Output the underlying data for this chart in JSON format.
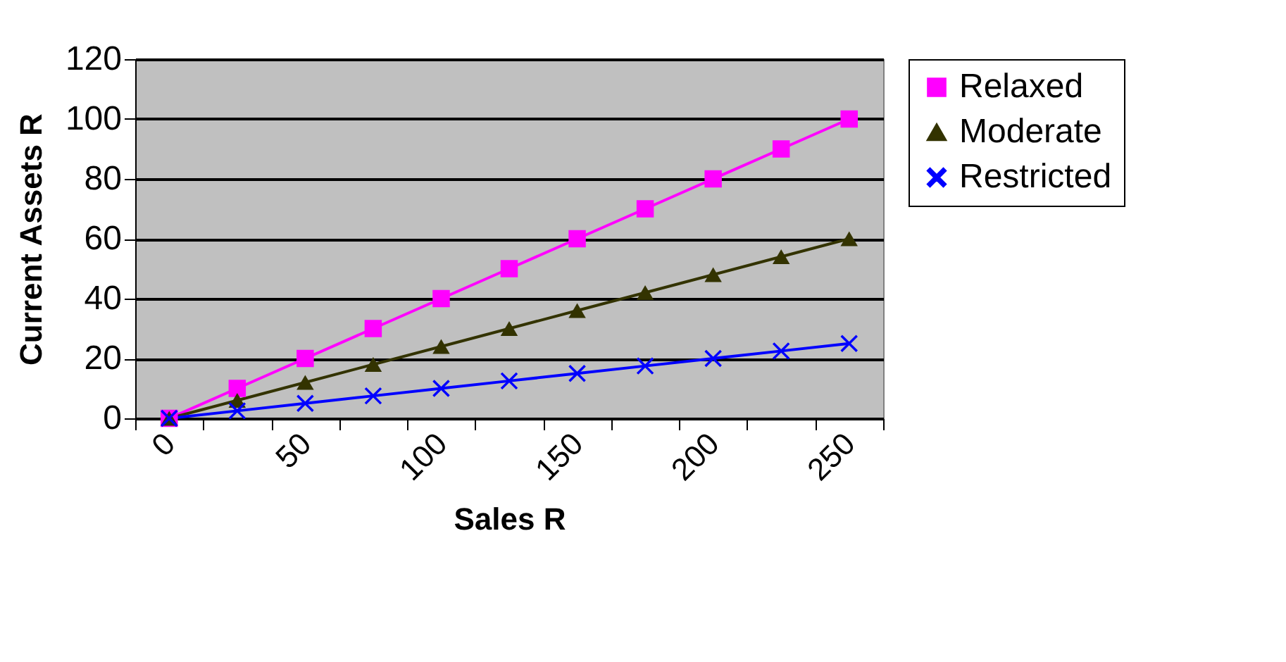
{
  "chart_data": {
    "type": "line",
    "xlabel": "Sales R",
    "ylabel": "Current Assets R",
    "categories": [
      "0",
      null,
      "50",
      null,
      "100",
      null,
      "150",
      null,
      "200",
      null,
      "250"
    ],
    "series": [
      {
        "name": "Relaxed",
        "color": "#ff00ff",
        "marker": "square",
        "values": [
          0,
          10,
          20,
          30,
          40,
          50,
          60,
          70,
          80,
          90,
          100
        ]
      },
      {
        "name": "Moderate",
        "color": "#333300",
        "marker": "triangle",
        "values": [
          0,
          6,
          12,
          18,
          24,
          30,
          36,
          42,
          48,
          54,
          60
        ]
      },
      {
        "name": "Restricted",
        "color": "#0000ff",
        "marker": "cross",
        "values": [
          0,
          2.5,
          5,
          7.5,
          10,
          12.5,
          15,
          17.5,
          20,
          22.5,
          25
        ]
      }
    ],
    "ylim": [
      0,
      120
    ],
    "yticks": [
      0,
      20,
      40,
      60,
      80,
      100,
      120
    ],
    "grid": "y",
    "legend": "right"
  }
}
